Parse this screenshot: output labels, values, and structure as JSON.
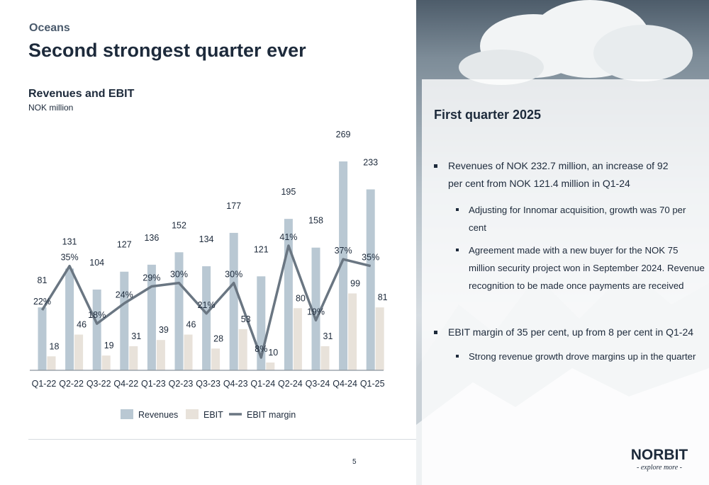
{
  "header": {
    "section": "Oceans",
    "title": "Second strongest quarter ever"
  },
  "chart_header": {
    "title": "Revenues and EBIT",
    "subtitle": "NOK million"
  },
  "chart_data": {
    "type": "bar",
    "title": "Revenues and EBIT",
    "subtitle": "NOK million",
    "categories": [
      "Q1-22",
      "Q2-22",
      "Q3-22",
      "Q4-22",
      "Q1-23",
      "Q2-23",
      "Q3-23",
      "Q4-23",
      "Q1-24",
      "Q2-24",
      "Q3-24",
      "Q4-24",
      "Q1-25"
    ],
    "series": [
      {
        "name": "Revenues",
        "type": "bar",
        "color": "#b9c8d3",
        "values": [
          81,
          131,
          104,
          127,
          136,
          152,
          134,
          177,
          121,
          195,
          158,
          269,
          233
        ]
      },
      {
        "name": "EBIT",
        "type": "bar",
        "color": "#e8e2da",
        "values": [
          18,
          46,
          19,
          31,
          39,
          46,
          28,
          53,
          10,
          80,
          31,
          99,
          81
        ]
      },
      {
        "name": "EBIT margin",
        "type": "line",
        "color": "#6a7682",
        "values": [
          22,
          35,
          18,
          24,
          29,
          30,
          21,
          30,
          8,
          41,
          19,
          37,
          35
        ],
        "labels": [
          "22%",
          "35%",
          "18%",
          "24%",
          "29%",
          "30%",
          "21%",
          "30%",
          "8%",
          "41%",
          "19%",
          "37%",
          "35%"
        ]
      }
    ],
    "ylim": [
      0,
      280
    ],
    "grid": false,
    "legend": "bottom"
  },
  "page_number": "5",
  "panel": {
    "title": "First quarter 2025",
    "bullets": [
      {
        "level": 1,
        "lines": [
          "Revenues of NOK 232.7 million, an increase of 92",
          "per cent from NOK 121.4 million in Q1-24"
        ]
      },
      {
        "level": 2,
        "lines": [
          "Adjusting for Innomar acquisition, growth was 70 per",
          "cent"
        ]
      },
      {
        "level": 2,
        "lines": [
          "Agreement made with a new buyer for the NOK 75",
          "million security project won in September 2024. Revenue",
          "recognition to be made once payments are received"
        ]
      },
      {
        "level": 1,
        "lines": [
          "EBIT margin of 35 per cent, up from 8 per cent in Q1-24"
        ]
      },
      {
        "level": 2,
        "lines": [
          "Strong revenue growth drove margins up in the quarter"
        ]
      }
    ]
  },
  "logo": {
    "name": "NORBIT",
    "tagline": "- explore more -"
  },
  "colors": {
    "text": "#1d2a3b",
    "revenues": "#b9c8d3",
    "ebit": "#e8e2da",
    "margin_line": "#6a7682"
  }
}
